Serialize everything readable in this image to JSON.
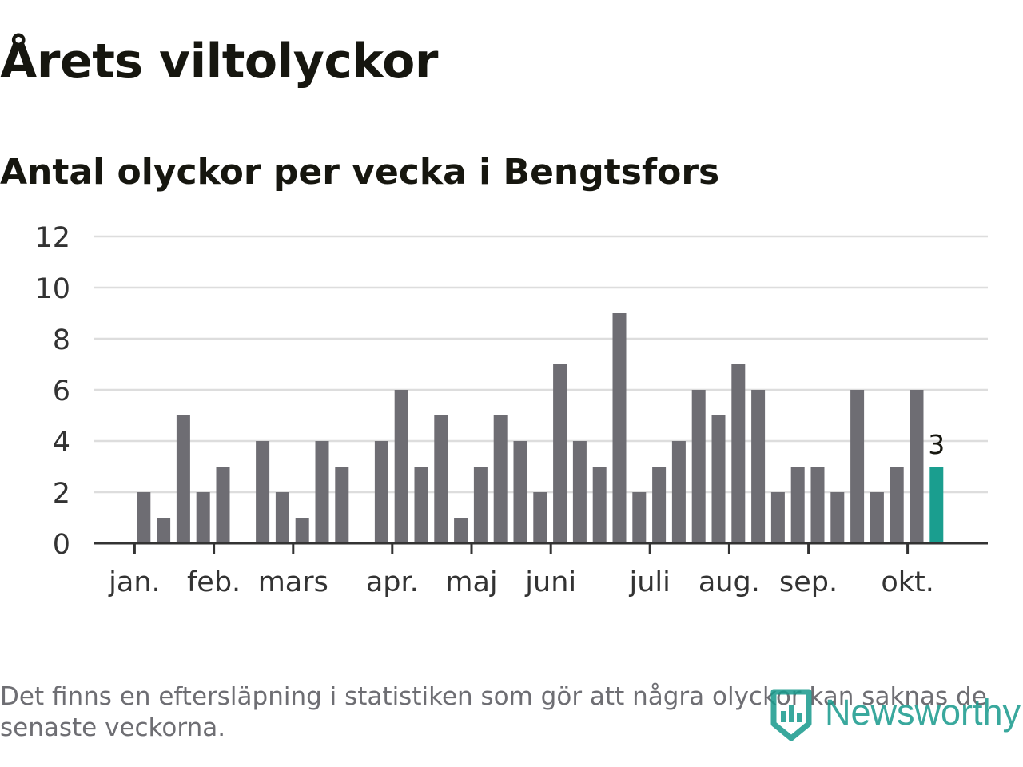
{
  "title": "Årets viltolyckor",
  "subtitle": "Antal olyckor per vecka i Bengtsfors",
  "footnote": "Det finns en eftersläpning i statistiken som gör att några olyckor kan saknas de senaste veckorna.",
  "brand": {
    "name": "Newsworthy",
    "color": "#179a8c"
  },
  "colors": {
    "bar": "#6e6d73",
    "highlight": "#1a9e8f",
    "grid": "#dddddd",
    "axis": "#333333",
    "text": "#16160f"
  },
  "chart_data": {
    "type": "bar",
    "title": "Antal olyckor per vecka i Bengtsfors",
    "xlabel": "",
    "ylabel": "",
    "ylim": [
      0,
      12
    ],
    "yticks": [
      "0",
      "2",
      "4",
      "6",
      "8",
      "10",
      "12"
    ],
    "weeks": [
      1,
      2,
      3,
      4,
      5,
      6,
      7,
      8,
      9,
      10,
      11,
      12,
      13,
      14,
      15,
      16,
      17,
      18,
      19,
      20,
      21,
      22,
      23,
      24,
      25,
      26,
      27,
      28,
      29,
      30,
      31,
      32,
      33,
      34,
      35,
      36,
      37,
      38,
      39,
      40,
      41,
      42
    ],
    "values": [
      0,
      2,
      1,
      5,
      2,
      3,
      0,
      4,
      2,
      1,
      4,
      3,
      0,
      4,
      6,
      3,
      5,
      1,
      3,
      5,
      4,
      2,
      7,
      4,
      3,
      9,
      2,
      3,
      4,
      6,
      5,
      7,
      6,
      2,
      3,
      3,
      2,
      6,
      2,
      3,
      6,
      3
    ],
    "highlight_index": 41,
    "highlight_label": "3",
    "month_labels": [
      {
        "label": "jan.",
        "at_week": 1.5
      },
      {
        "label": "feb.",
        "at_week": 5.5
      },
      {
        "label": "mars",
        "at_week": 9.5
      },
      {
        "label": "apr.",
        "at_week": 14.5
      },
      {
        "label": "maj",
        "at_week": 18.5
      },
      {
        "label": "juni",
        "at_week": 22.5
      },
      {
        "label": "juli",
        "at_week": 27.5
      },
      {
        "label": "aug.",
        "at_week": 31.5
      },
      {
        "label": "sep.",
        "at_week": 35.5
      },
      {
        "label": "okt.",
        "at_week": 40.5
      }
    ],
    "grid": true
  }
}
